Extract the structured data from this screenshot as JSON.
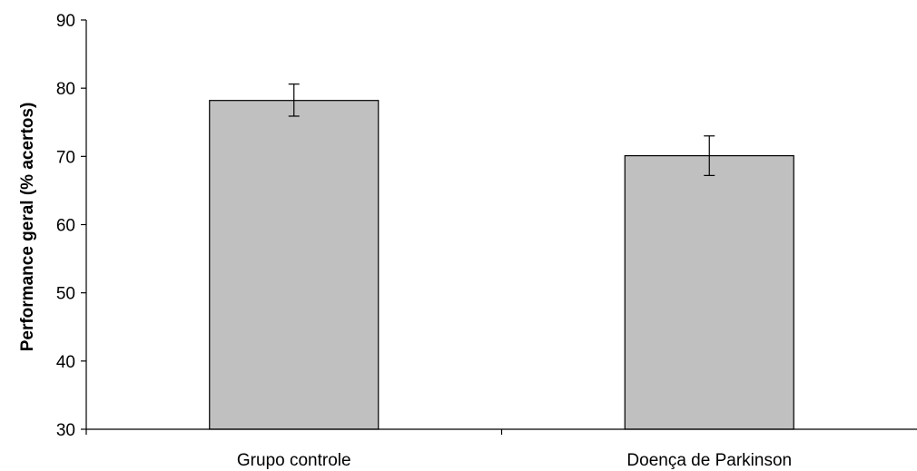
{
  "chart_data": {
    "type": "bar",
    "title": "",
    "xlabel": "",
    "ylabel": "Performance geral (% acertos)",
    "ylim": [
      30,
      90
    ],
    "yticks": [
      30,
      40,
      50,
      60,
      70,
      80,
      90
    ],
    "grid": false,
    "categories": [
      "Grupo controle",
      "Doença de Parkinson"
    ],
    "values": [
      78.2,
      70.1
    ],
    "error_bars": [
      {
        "low": 75.9,
        "high": 80.6
      },
      {
        "low": 67.2,
        "high": 73.0
      }
    ],
    "colors": {
      "bar_fill": "#c0c0c0",
      "bar_stroke": "#000000",
      "axis": "#000000"
    }
  }
}
